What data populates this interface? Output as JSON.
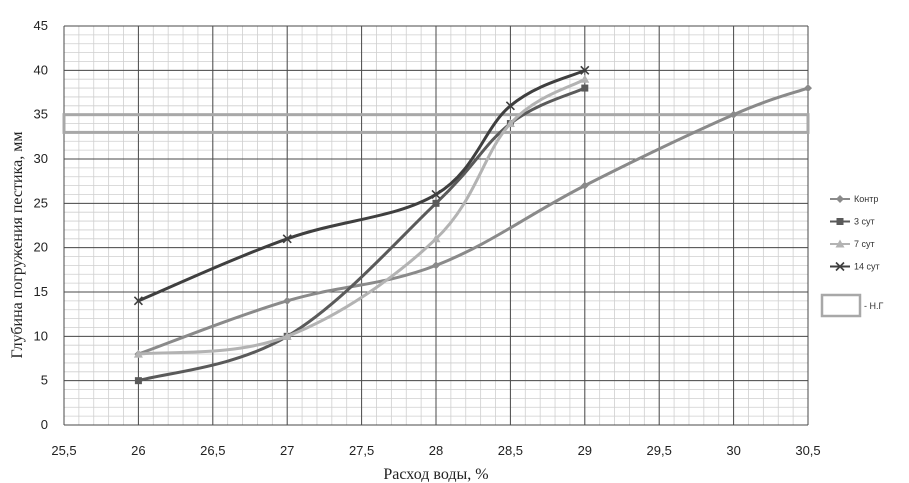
{
  "chart_data": {
    "type": "line",
    "title": "",
    "xlabel": "Расход воды, %",
    "ylabel": "Глубина погружения пестика, мм",
    "xlim": [
      25.5,
      30.5
    ],
    "ylim": [
      0,
      45
    ],
    "x_ticks": [
      "25,5",
      "26",
      "26,5",
      "27",
      "27,5",
      "28",
      "28,5",
      "29",
      "29,5",
      "30",
      "30,5"
    ],
    "y_ticks": [
      "0",
      "5",
      "10",
      "15",
      "20",
      "25",
      "30",
      "35",
      "40",
      "45"
    ],
    "grid": true,
    "legend_position": "right",
    "series": [
      {
        "name": "Контр",
        "marker": "diamond",
        "color": "#8a8a8a",
        "x": [
          26,
          27,
          28,
          29,
          30,
          30.5
        ],
        "y": [
          8,
          14,
          18,
          27,
          35,
          38
        ]
      },
      {
        "name": "3 сут",
        "marker": "square",
        "color": "#5a5a5a",
        "x": [
          26,
          27,
          28,
          28.5,
          29
        ],
        "y": [
          5,
          10,
          25,
          34,
          38
        ]
      },
      {
        "name": "7 сут",
        "marker": "triangle",
        "color": "#b3b3b3",
        "x": [
          26,
          27,
          28,
          28.5,
          29
        ],
        "y": [
          8,
          10,
          21,
          34,
          39
        ]
      },
      {
        "name": "14 сут",
        "marker": "cross",
        "color": "#3f3f3f",
        "x": [
          26,
          27,
          28,
          28.5,
          29
        ],
        "y": [
          14,
          21,
          26,
          36,
          40
        ]
      }
    ],
    "band": {
      "name": "- Н.Г",
      "y_from": 33,
      "y_to": 35,
      "color": "#a8a8a8"
    }
  }
}
